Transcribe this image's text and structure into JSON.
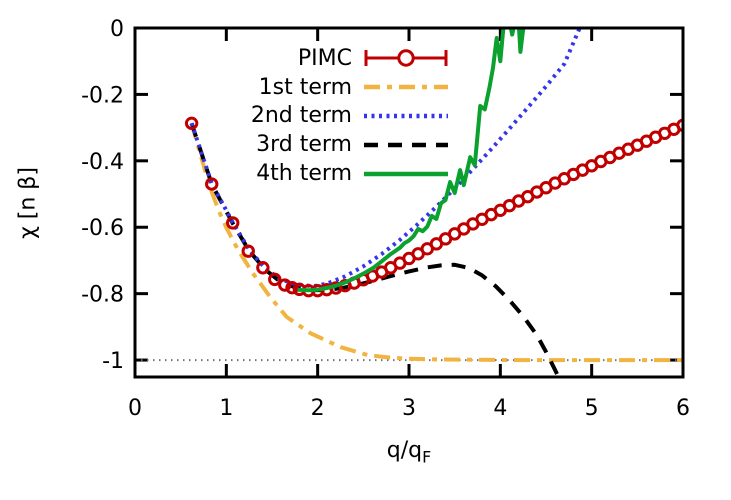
{
  "figure": {
    "background": "#ffffff"
  },
  "chart_data": {
    "type": "line",
    "title": "",
    "xlabel": "q/q_F",
    "xlabel_base": "q/q",
    "xlabel_sub": "F",
    "ylabel": "χ [n β]",
    "xlim": [
      0,
      6
    ],
    "ylim": [
      -1.051,
      0
    ],
    "grid": false,
    "legend_position": "top-center-inside",
    "xtick_labels": [
      "0",
      "1",
      "2",
      "3",
      "4",
      "5",
      "6"
    ],
    "xtick_values": [
      0,
      1,
      2,
      3,
      4,
      5,
      6
    ],
    "ytick_labels": [
      "0",
      "-0.2",
      "-0.4",
      "-0.6",
      "-0.8",
      "-1"
    ],
    "ytick_values": [
      0,
      -0.2,
      -0.4,
      -0.6,
      -0.8,
      -1
    ],
    "draw_order": [
      "ref-line",
      "1st term",
      "3rd term",
      "2nd term",
      "PIMC",
      "4th term"
    ],
    "series": [
      {
        "name": "PIMC",
        "color": "#c00000",
        "marker": "open-circle",
        "style": "errorbars",
        "points": [
          [
            0.62,
            -0.287
          ],
          [
            0.84,
            -0.47
          ],
          [
            1.07,
            -0.587
          ],
          [
            1.24,
            -0.672
          ],
          [
            1.4,
            -0.722
          ],
          [
            1.53,
            -0.757
          ],
          [
            1.64,
            -0.774
          ],
          [
            1.72,
            -0.782
          ],
          [
            1.8,
            -0.787
          ],
          [
            1.9,
            -0.791
          ],
          [
            2.0,
            -0.791
          ],
          [
            2.1,
            -0.788
          ],
          [
            2.2,
            -0.783
          ],
          [
            2.3,
            -0.776
          ],
          [
            2.4,
            -0.768
          ],
          [
            2.5,
            -0.758
          ],
          [
            2.6,
            -0.747
          ],
          [
            2.7,
            -0.735
          ],
          [
            2.8,
            -0.722
          ],
          [
            2.9,
            -0.708
          ],
          [
            3.0,
            -0.694
          ],
          [
            3.1,
            -0.68
          ],
          [
            3.2,
            -0.665
          ],
          [
            3.3,
            -0.65
          ],
          [
            3.4,
            -0.635
          ],
          [
            3.5,
            -0.62
          ],
          [
            3.6,
            -0.605
          ],
          [
            3.7,
            -0.59
          ],
          [
            3.8,
            -0.576
          ],
          [
            3.9,
            -0.562
          ],
          [
            4.0,
            -0.549
          ],
          [
            4.1,
            -0.535
          ],
          [
            4.2,
            -0.521
          ],
          [
            4.3,
            -0.508
          ],
          [
            4.4,
            -0.494
          ],
          [
            4.5,
            -0.481
          ],
          [
            4.6,
            -0.467
          ],
          [
            4.7,
            -0.454
          ],
          [
            4.8,
            -0.441
          ],
          [
            4.9,
            -0.428
          ],
          [
            5.0,
            -0.415
          ],
          [
            5.1,
            -0.402
          ],
          [
            5.2,
            -0.39
          ],
          [
            5.3,
            -0.377
          ],
          [
            5.4,
            -0.365
          ],
          [
            5.5,
            -0.353
          ],
          [
            5.6,
            -0.341
          ],
          [
            5.7,
            -0.329
          ],
          [
            5.8,
            -0.317
          ],
          [
            5.9,
            -0.305
          ],
          [
            6.0,
            -0.293
          ]
        ]
      },
      {
        "name": "1st term",
        "color": "#f1b440",
        "dash": "dashdot",
        "width": 4,
        "points": [
          [
            0.62,
            -0.287
          ],
          [
            0.72,
            -0.385
          ],
          [
            0.82,
            -0.479
          ],
          [
            0.92,
            -0.552
          ],
          [
            1.0,
            -0.601
          ],
          [
            1.13,
            -0.669
          ],
          [
            1.29,
            -0.738
          ],
          [
            1.48,
            -0.81
          ],
          [
            1.66,
            -0.87
          ],
          [
            1.92,
            -0.919
          ],
          [
            2.1,
            -0.942
          ],
          [
            2.25,
            -0.961
          ],
          [
            2.55,
            -0.985
          ],
          [
            2.8,
            -0.993
          ],
          [
            3.0,
            -0.996
          ],
          [
            3.3,
            -0.998
          ],
          [
            3.7,
            -0.999
          ],
          [
            4.2,
            -1.0
          ],
          [
            6.0,
            -1.0
          ]
        ]
      },
      {
        "name": "2nd term",
        "color": "#3535ee",
        "dash": "dotted",
        "width": 4,
        "points": [
          [
            0.62,
            -0.287
          ],
          [
            0.84,
            -0.468
          ],
          [
            1.07,
            -0.585
          ],
          [
            1.25,
            -0.668
          ],
          [
            1.42,
            -0.722
          ],
          [
            1.58,
            -0.755
          ],
          [
            1.75,
            -0.771
          ],
          [
            1.95,
            -0.778
          ],
          [
            2.1,
            -0.77
          ],
          [
            2.3,
            -0.748
          ],
          [
            2.5,
            -0.718
          ],
          [
            2.7,
            -0.681
          ],
          [
            2.9,
            -0.638
          ],
          [
            3.1,
            -0.59
          ],
          [
            3.3,
            -0.538
          ],
          [
            3.5,
            -0.483
          ],
          [
            3.7,
            -0.425
          ],
          [
            3.9,
            -0.365
          ],
          [
            4.1,
            -0.303
          ],
          [
            4.3,
            -0.24
          ],
          [
            4.5,
            -0.176
          ],
          [
            4.7,
            -0.108
          ],
          [
            4.85,
            -0.012
          ],
          [
            4.92,
            0.035
          ]
        ]
      },
      {
        "name": "3rd term",
        "color": "#000000",
        "dash": "dashed",
        "width": 4,
        "points": [
          [
            0.62,
            -0.287
          ],
          [
            0.84,
            -0.47
          ],
          [
            1.07,
            -0.588
          ],
          [
            1.25,
            -0.671
          ],
          [
            1.42,
            -0.726
          ],
          [
            1.58,
            -0.762
          ],
          [
            1.75,
            -0.781
          ],
          [
            1.95,
            -0.79
          ],
          [
            2.1,
            -0.789
          ],
          [
            2.25,
            -0.784
          ],
          [
            2.4,
            -0.776
          ],
          [
            2.6,
            -0.762
          ],
          [
            2.8,
            -0.747
          ],
          [
            3.0,
            -0.733
          ],
          [
            3.2,
            -0.721
          ],
          [
            3.35,
            -0.715
          ],
          [
            3.5,
            -0.713
          ],
          [
            3.65,
            -0.722
          ],
          [
            3.8,
            -0.745
          ],
          [
            3.95,
            -0.778
          ],
          [
            4.1,
            -0.82
          ],
          [
            4.25,
            -0.868
          ],
          [
            4.4,
            -0.925
          ],
          [
            4.5,
            -0.975
          ],
          [
            4.6,
            -1.03
          ],
          [
            4.66,
            -1.065
          ]
        ]
      },
      {
        "name": "4th term",
        "color": "#0aa12f",
        "dash": "solid",
        "width": 4,
        "points": [
          [
            1.78,
            -0.788
          ],
          [
            1.9,
            -0.79
          ],
          [
            2.0,
            -0.788
          ],
          [
            2.1,
            -0.783
          ],
          [
            2.2,
            -0.776
          ],
          [
            2.3,
            -0.766
          ],
          [
            2.4,
            -0.754
          ],
          [
            2.5,
            -0.74
          ],
          [
            2.6,
            -0.724
          ],
          [
            2.7,
            -0.703
          ],
          [
            2.8,
            -0.681
          ],
          [
            2.9,
            -0.662
          ],
          [
            2.95,
            -0.648
          ],
          [
            3.0,
            -0.64
          ],
          [
            3.05,
            -0.627
          ],
          [
            3.1,
            -0.605
          ],
          [
            3.15,
            -0.612
          ],
          [
            3.2,
            -0.598
          ],
          [
            3.25,
            -0.566
          ],
          [
            3.3,
            -0.575
          ],
          [
            3.35,
            -0.528
          ],
          [
            3.4,
            -0.518
          ],
          [
            3.45,
            -0.464
          ],
          [
            3.5,
            -0.497
          ],
          [
            3.56,
            -0.428
          ],
          [
            3.6,
            -0.473
          ],
          [
            3.67,
            -0.389
          ],
          [
            3.72,
            -0.413
          ],
          [
            3.78,
            -0.235
          ],
          [
            3.83,
            -0.245
          ],
          [
            3.88,
            -0.18
          ],
          [
            3.92,
            -0.12
          ],
          [
            3.96,
            -0.03
          ],
          [
            4.0,
            -0.1
          ],
          [
            4.04,
            0.02
          ],
          [
            4.1,
            0.02
          ],
          [
            4.13,
            -0.02
          ],
          [
            4.16,
            0.02
          ],
          [
            4.2,
            0.02
          ],
          [
            4.22,
            -0.072
          ],
          [
            4.26,
            0.02
          ],
          [
            4.3,
            0.015
          ]
        ]
      },
      {
        "name": "ref-line",
        "color": "#737373",
        "dash": "dotfine",
        "width": 2,
        "points": [
          [
            0,
            -1
          ],
          [
            6,
            -1
          ]
        ]
      }
    ]
  },
  "legend": {
    "entries": [
      {
        "label": "PIMC"
      },
      {
        "label": "1st term"
      },
      {
        "label": "2nd term"
      },
      {
        "label": "3rd term"
      },
      {
        "label": "4th term"
      }
    ]
  }
}
